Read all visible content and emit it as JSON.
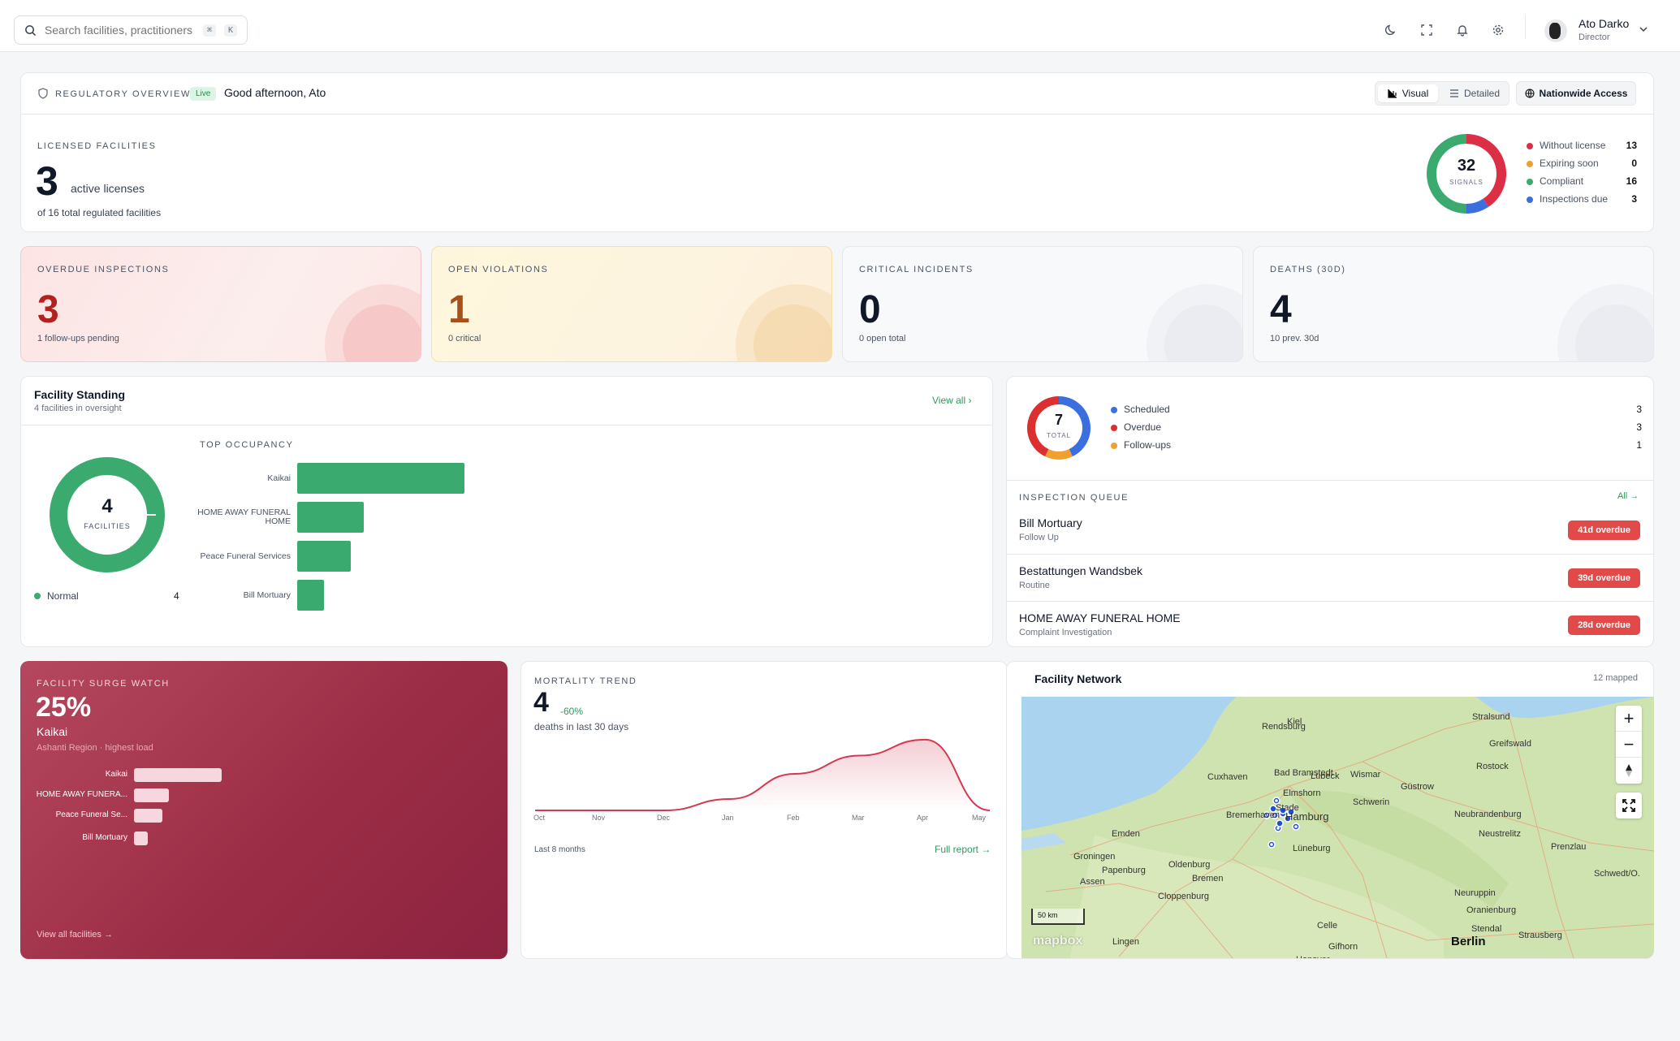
{
  "search": {
    "placeholder": "Search facilities, practitioners",
    "kbd1": "⌘",
    "kbd2": "K"
  },
  "user": {
    "name": "Ato Darko",
    "role": "Director"
  },
  "overview": {
    "label": "REGULATORY OVERVIEW",
    "live": "Live",
    "greeting": "Good afternoon, Ato",
    "visual": "Visual",
    "detailed": "Detailed",
    "access": "Nationwide Access"
  },
  "licensed": {
    "label": "LICENSED FACILITIES",
    "count": "3",
    "count_label": "active licenses",
    "total": "of 16 total regulated facilities"
  },
  "signals": {
    "total": "32",
    "total_label": "SIGNALS",
    "items": [
      {
        "label": "Without license",
        "value": "13",
        "color": "#dc2f45"
      },
      {
        "label": "Expiring soon",
        "value": "0",
        "color": "#f0a030"
      },
      {
        "label": "Compliant",
        "value": "16",
        "color": "#3aaa6f"
      },
      {
        "label": "Inspections due",
        "value": "3",
        "color": "#3b6fe0"
      }
    ]
  },
  "kpis": [
    {
      "label": "OVERDUE INSPECTIONS",
      "value": "3",
      "sub": "1 follow-ups pending"
    },
    {
      "label": "OPEN VIOLATIONS",
      "value": "1",
      "sub": "0 critical"
    },
    {
      "label": "CRITICAL INCIDENTS",
      "value": "0",
      "sub": "0 open total"
    },
    {
      "label": "DEATHS (30D)",
      "value": "4",
      "sub": "10 prev. 30d"
    }
  ],
  "standing": {
    "title": "Facility Standing",
    "subtitle": "4 facilities in oversight",
    "view_all": "View all ›",
    "total": "4",
    "total_label": "FACILITIES",
    "legend": {
      "label": "Normal",
      "value": "4",
      "color": "#3aaa6f"
    },
    "occupancy_label": "TOP OCCUPANCY",
    "occupancy": [
      {
        "name": "Kaikai",
        "value": 100
      },
      {
        "name": "HOME AWAY FUNERAL HOME",
        "value": 40
      },
      {
        "name": "Peace Funeral Services",
        "value": 32
      },
      {
        "name": "Bill Mortuary",
        "value": 16
      }
    ]
  },
  "inspections": {
    "total": "7",
    "total_label": "TOTAL",
    "legend": [
      {
        "label": "Scheduled",
        "value": "3",
        "color": "#3b6fe0"
      },
      {
        "label": "Overdue",
        "value": "3",
        "color": "#dc2f2f"
      },
      {
        "label": "Follow-ups",
        "value": "1",
        "color": "#f0a030"
      }
    ],
    "queue_label": "INSPECTION QUEUE",
    "all_link": "All →",
    "queue": [
      {
        "name": "Bill Mortuary",
        "type": "Follow Up",
        "badge": "41d overdue"
      },
      {
        "name": "Bestattungen Wandsbek",
        "type": "Routine",
        "badge": "39d overdue"
      },
      {
        "name": "HOME AWAY FUNERAL HOME",
        "type": "Complaint Investigation",
        "badge": "28d overdue"
      }
    ]
  },
  "surge": {
    "label": "FACILITY SURGE WATCH",
    "percent": "25%",
    "name": "Kaikai",
    "region": "Ashanti Region · highest load",
    "bars": [
      {
        "name": "Kaikai",
        "value": 100
      },
      {
        "name": "HOME AWAY FUNERA...",
        "value": 40
      },
      {
        "name": "Peace Funeral Se...",
        "value": 32
      },
      {
        "name": "Bill Mortuary",
        "value": 16
      }
    ],
    "link": "View all facilities →"
  },
  "mortality": {
    "label": "MORTALITY TREND",
    "value": "4",
    "change": "-60%",
    "sub": "deaths in last 30 days",
    "period": "Last 8 months",
    "report": "Full report →",
    "chart_data": {
      "type": "area",
      "x": [
        "Oct",
        "Nov",
        "Dec",
        "Jan",
        "Feb",
        "Mar",
        "Apr",
        "May"
      ],
      "values": [
        0,
        0,
        0,
        0.5,
        1.6,
        2.4,
        3.1,
        0
      ]
    }
  },
  "map": {
    "title": "Facility Network",
    "mapped": "12 mapped",
    "scale": "50 km",
    "brand": "mapbox",
    "cities": [
      {
        "name": "Kiel"
      },
      {
        "name": "Rendsburg"
      },
      {
        "name": "Stralsund"
      },
      {
        "name": "Greifswald"
      },
      {
        "name": "Rostock"
      },
      {
        "name": "Cuxhaven"
      },
      {
        "name": "Bad Bramstedt"
      },
      {
        "name": "Lübeck"
      },
      {
        "name": "Wismar"
      },
      {
        "name": "Güstrow"
      },
      {
        "name": "Elmshorn"
      },
      {
        "name": "Stade"
      },
      {
        "name": "Hamburg"
      },
      {
        "name": "Schwerin"
      },
      {
        "name": "Bremerhaven"
      },
      {
        "name": "Neubrandenburg"
      },
      {
        "name": "Emden"
      },
      {
        "name": "Lüneburg"
      },
      {
        "name": "Neustrelitz"
      },
      {
        "name": "Prenzlau"
      },
      {
        "name": "Groningen"
      },
      {
        "name": "Papenburg"
      },
      {
        "name": "Oldenburg"
      },
      {
        "name": "Bremen"
      },
      {
        "name": "Assen"
      },
      {
        "name": "Cloppenburg"
      },
      {
        "name": "Neuruppin"
      },
      {
        "name": "Oranienburg"
      },
      {
        "name": "Stendal"
      },
      {
        "name": "Celle"
      },
      {
        "name": "Lingen"
      },
      {
        "name": "Gifhorn"
      },
      {
        "name": "Hanover"
      },
      {
        "name": "Berlin"
      },
      {
        "name": "Strausberg"
      },
      {
        "name": "Schwedt/O."
      }
    ]
  }
}
